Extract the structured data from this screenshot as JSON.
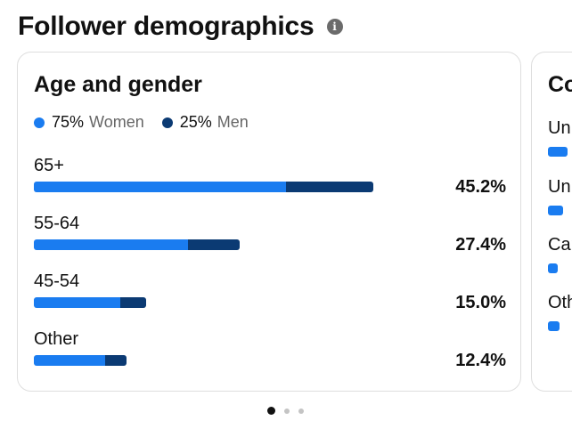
{
  "header": {
    "title": "Follower demographics",
    "info_icon": "info-icon"
  },
  "age_gender": {
    "title": "Age and gender",
    "legend": [
      {
        "pct": "75%",
        "label": "Women",
        "color": "#1a7cf0"
      },
      {
        "pct": "25%",
        "label": "Men",
        "color": "#0b3a73"
      }
    ],
    "rows": [
      {
        "label": "65+",
        "value": "45.2%",
        "women": 33.6,
        "men": 11.6
      },
      {
        "label": "55-64",
        "value": "27.4%",
        "women": 20.6,
        "men": 6.8
      },
      {
        "label": "45-54",
        "value": "15.0%",
        "women": 11.5,
        "men": 3.5
      },
      {
        "label": "Other",
        "value": "12.4%",
        "women": 9.5,
        "men": 2.9
      }
    ]
  },
  "countries": {
    "title": "Co",
    "rows": [
      {
        "label": "Un",
        "share": 0.9
      },
      {
        "label": "Un",
        "share": 0.7
      },
      {
        "label": "Can",
        "share": 0.45
      },
      {
        "label": "Oth",
        "share": 0.55
      }
    ]
  },
  "pager": {
    "pages": 3,
    "current": 1
  },
  "chart_data": {
    "type": "bar",
    "title": "Age and gender",
    "categories": [
      "65+",
      "55-64",
      "45-54",
      "Other"
    ],
    "values": [
      45.2,
      27.4,
      15.0,
      12.4
    ],
    "series": [
      {
        "name": "Women",
        "values": [
          33.6,
          20.6,
          11.5,
          9.5
        ]
      },
      {
        "name": "Men",
        "values": [
          11.6,
          6.8,
          3.5,
          2.9
        ]
      }
    ]
  }
}
